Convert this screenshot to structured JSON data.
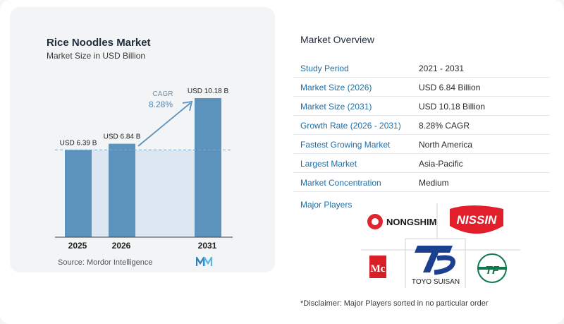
{
  "chart_data": {
    "type": "bar",
    "title": "Rice Noodles Market",
    "subtitle": "Market Size in USD Billion",
    "categories": [
      "2025",
      "2026",
      "2031"
    ],
    "values": [
      6.39,
      6.84,
      10.18
    ],
    "data_labels": [
      "USD 6.39 B",
      "USD 6.84 B",
      "USD 10.18 B"
    ],
    "cagr_label": "CAGR",
    "cagr_value": "8.28%",
    "bar_color": "#5b93bd",
    "reference_line_color": "#7aa6c8",
    "shade_color": "#dce7f1"
  },
  "source": "Source:  Mordor Intelligence",
  "overview": {
    "title": "Market Overview",
    "rows": [
      {
        "label": "Study Period",
        "value": "2021 - 2031"
      },
      {
        "label": "Market Size (2026)",
        "value": "USD 6.84 Billion"
      },
      {
        "label": "Market Size (2031)",
        "value": "USD 10.18 Billion"
      },
      {
        "label": "Growth Rate (2026 - 2031)",
        "value": "8.28% CAGR"
      },
      {
        "label": "Fastest Growing Market",
        "value": "North America"
      },
      {
        "label": "Largest Market",
        "value": "Asia-Pacific"
      },
      {
        "label": "Market Concentration",
        "value": "Medium"
      }
    ]
  },
  "players": {
    "label": "Major Players",
    "logos": [
      "NONGSHIM",
      "NISSIN",
      "McCormick",
      "TOYO SUISAN",
      "TF"
    ],
    "nongshim_text": "NONGSHIM",
    "nissin_text": "NISSIN",
    "mccormick_text": "Mc",
    "toyo_text": "TOYO SUISAN",
    "tf_text": "TF"
  },
  "disclaimer": "*Disclaimer: Major Players sorted in no particular order"
}
